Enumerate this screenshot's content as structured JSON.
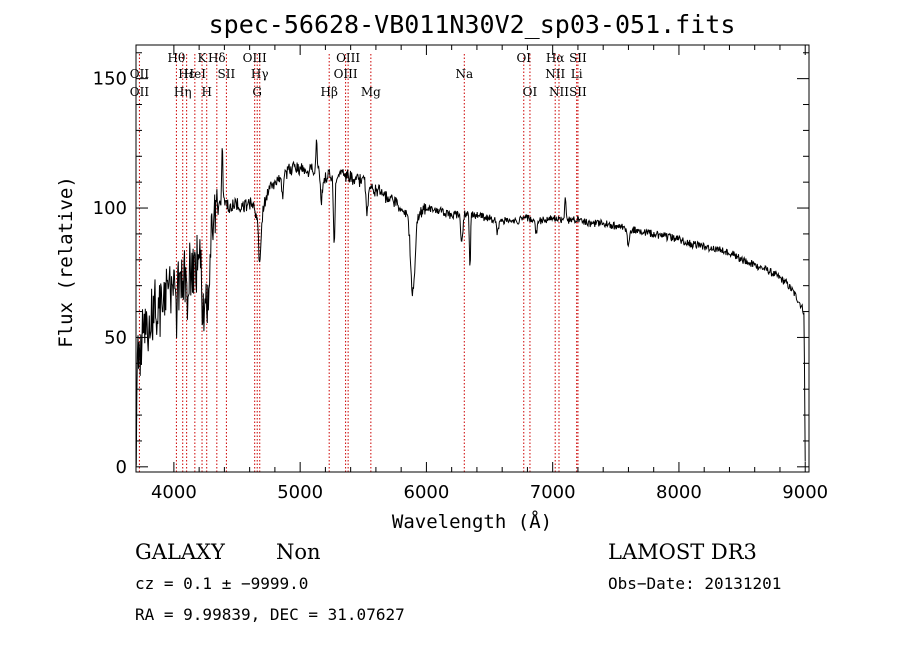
{
  "chart_data": {
    "type": "line",
    "title": "spec-56628-VB011N30V2_sp03-051.fits",
    "xlabel": "Wavelength (Å)",
    "ylabel": "Flux (relative)",
    "xlim": [
      3700,
      9030
    ],
    "ylim": [
      -2,
      163
    ],
    "xticks": [
      4000,
      5000,
      6000,
      7000,
      8000,
      9000
    ],
    "yticks": [
      0,
      50,
      100,
      150
    ],
    "xtick_labels": [
      "4000",
      "5000",
      "6000",
      "7000",
      "8000",
      "9000"
    ],
    "ytick_labels": [
      "0",
      "50",
      "100",
      "150"
    ],
    "grid": false,
    "series": [
      {
        "name": "flux",
        "knots": [
          [
            3700,
            0
          ],
          [
            3710,
            48
          ],
          [
            3730,
            38
          ],
          [
            3760,
            58
          ],
          [
            3800,
            55
          ],
          [
            3850,
            62
          ],
          [
            3900,
            60
          ],
          [
            3950,
            68
          ],
          [
            4000,
            70
          ],
          [
            4050,
            72
          ],
          [
            4100,
            78
          ],
          [
            4150,
            76
          ],
          [
            4200,
            80
          ],
          [
            4250,
            70
          ],
          [
            4300,
            90
          ],
          [
            4350,
            100
          ],
          [
            4400,
            103
          ],
          [
            4450,
            100
          ],
          [
            4500,
            102
          ],
          [
            4550,
            100
          ],
          [
            4600,
            102
          ],
          [
            4650,
            98
          ],
          [
            4700,
            100
          ],
          [
            4750,
            106
          ],
          [
            4800,
            110
          ],
          [
            4850,
            113
          ],
          [
            4900,
            114
          ],
          [
            4950,
            116
          ],
          [
            5000,
            115
          ],
          [
            5050,
            114
          ],
          [
            5100,
            115
          ],
          [
            5150,
            114
          ],
          [
            5200,
            112
          ],
          [
            5300,
            113
          ],
          [
            5400,
            112
          ],
          [
            5500,
            110
          ],
          [
            5600,
            107
          ],
          [
            5700,
            104
          ],
          [
            5800,
            100
          ],
          [
            5900,
            97
          ],
          [
            6000,
            100
          ],
          [
            6100,
            99
          ],
          [
            6200,
            97
          ],
          [
            6300,
            98
          ],
          [
            6400,
            97
          ],
          [
            6500,
            96
          ],
          [
            6600,
            95
          ],
          [
            6700,
            95
          ],
          [
            6800,
            96
          ],
          [
            6900,
            95
          ],
          [
            7000,
            96
          ],
          [
            7100,
            95
          ],
          [
            7200,
            96
          ],
          [
            7300,
            94
          ],
          [
            7400,
            94
          ],
          [
            7500,
            93
          ],
          [
            7600,
            92
          ],
          [
            7700,
            91
          ],
          [
            7800,
            90
          ],
          [
            7900,
            89
          ],
          [
            8000,
            88
          ],
          [
            8100,
            86
          ],
          [
            8200,
            85
          ],
          [
            8300,
            84
          ],
          [
            8400,
            83
          ],
          [
            8500,
            80
          ],
          [
            8600,
            78
          ],
          [
            8700,
            76
          ],
          [
            8800,
            73
          ],
          [
            8850,
            71
          ],
          [
            8900,
            68
          ],
          [
            8950,
            64
          ],
          [
            8990,
            60
          ],
          [
            9000,
            2
          ]
        ],
        "features": [
          {
            "center": 4020,
            "depth": 15,
            "width": 10
          },
          {
            "center": 4101,
            "depth": 15,
            "width": 10
          },
          {
            "center": 4230,
            "depth": 18,
            "width": 10
          },
          {
            "center": 4270,
            "depth": 18,
            "width": 12
          },
          {
            "center": 4383,
            "depth": -25,
            "width": 6
          },
          {
            "center": 4680,
            "depth": 20,
            "width": 15
          },
          {
            "center": 4861,
            "depth": 8,
            "width": 10
          },
          {
            "center": 5130,
            "depth": -15,
            "width": 6
          },
          {
            "center": 5170,
            "depth": 10,
            "width": 10
          },
          {
            "center": 5270,
            "depth": 28,
            "width": 8
          },
          {
            "center": 5530,
            "depth": 12,
            "width": 10
          },
          {
            "center": 5893,
            "depth": 30,
            "width": 25
          },
          {
            "center": 6280,
            "depth": 12,
            "width": 12
          },
          {
            "center": 6345,
            "depth": 22,
            "width": 6
          },
          {
            "center": 6563,
            "depth": 5,
            "width": 10
          },
          {
            "center": 6870,
            "depth": 5,
            "width": 10
          },
          {
            "center": 7100,
            "depth": -8,
            "width": 8
          },
          {
            "center": 7600,
            "depth": 6,
            "width": 15
          }
        ],
        "noise": {
          "amplitude_blue": 22,
          "amplitude_mid": 5.5,
          "amplitude_red": 3
        }
      }
    ],
    "lines": [
      {
        "wavelength": 3727,
        "label": "OII",
        "row": 2
      },
      {
        "wavelength": 3727,
        "label": "OII",
        "row": 3
      },
      {
        "wavelength": 4020,
        "label": "Hθ",
        "row": 1
      },
      {
        "wavelength": 4101,
        "label": "Hε",
        "row": 2
      },
      {
        "wavelength": 4070,
        "label": "Hη",
        "row": 3
      },
      {
        "wavelength": 4166,
        "label": "HeI",
        "row": 2
      },
      {
        "wavelength": 4223,
        "label": "K",
        "row": 1
      },
      {
        "wavelength": 4260,
        "label": "H",
        "row": 3
      },
      {
        "wavelength": 4340,
        "label": "Hδ",
        "row": 1
      },
      {
        "wavelength": 4416,
        "label": "SII",
        "row": 2
      },
      {
        "wavelength": 4640,
        "label": "OIII",
        "row": 1
      },
      {
        "wavelength": 4680,
        "label": "Hγ",
        "row": 2
      },
      {
        "wavelength": 4660,
        "label": "G",
        "row": 3
      },
      {
        "wavelength": 5230,
        "label": "Hβ",
        "row": 3
      },
      {
        "wavelength": 5380,
        "label": "OIII",
        "row": 1
      },
      {
        "wavelength": 5360,
        "label": "OIII",
        "row": 2
      },
      {
        "wavelength": 5560,
        "label": "Mg",
        "row": 3
      },
      {
        "wavelength": 6300,
        "label": "Na",
        "row": 2
      },
      {
        "wavelength": 6771,
        "label": "OI",
        "row": 1
      },
      {
        "wavelength": 6820,
        "label": "OI",
        "row": 3
      },
      {
        "wavelength": 7020,
        "label": "Hα",
        "row": 1
      },
      {
        "wavelength": 7020,
        "label": "NII",
        "row": 2
      },
      {
        "wavelength": 7050,
        "label": "NII",
        "row": 3
      },
      {
        "wavelength": 7200,
        "label": "SII",
        "row": 1
      },
      {
        "wavelength": 7190,
        "label": "Li",
        "row": 2
      },
      {
        "wavelength": 7200,
        "label": "SII",
        "row": 3
      }
    ],
    "line_color": "#cc0000",
    "plot_color": "#000000"
  },
  "info": {
    "class": "GALAXY",
    "subclass": "Non",
    "survey": "LAMOST DR3",
    "cz": "cz = 0.1 ± −9999.0",
    "obs_date": "Obs−Date: 20131201",
    "coords": "RA =   9.99839, DEC =  31.07627"
  }
}
